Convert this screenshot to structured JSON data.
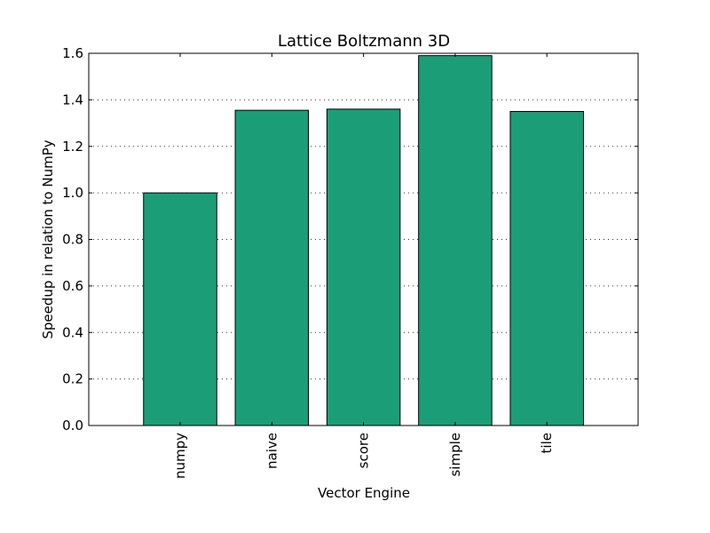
{
  "chart_data": {
    "type": "bar",
    "title": "Lattice Boltzmann 3D",
    "xlabel": "Vector Engine",
    "ylabel": "Speedup in relation to NumPy",
    "categories": [
      "numpy",
      "naive",
      "score",
      "simple",
      "tile"
    ],
    "values": [
      1.0,
      1.355,
      1.36,
      1.59,
      1.35
    ],
    "ylim": [
      0.0,
      1.6
    ],
    "yticks": [
      "0.0",
      "0.2",
      "0.4",
      "0.6",
      "0.8",
      "1.0",
      "1.2",
      "1.4",
      "1.6"
    ],
    "grid": true,
    "grid_axis": "y",
    "bar_color": "#1b9e77",
    "legend": false
  }
}
